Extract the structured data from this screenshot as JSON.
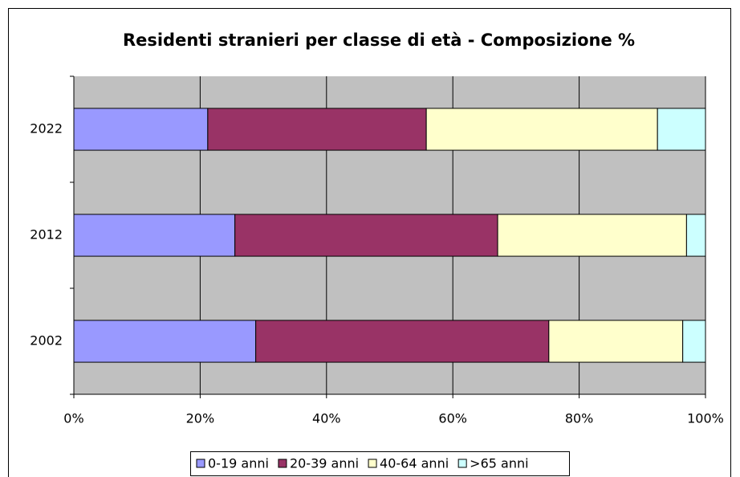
{
  "chart_data": {
    "type": "stacked-barh",
    "title": "Residenti stranieri per classe di età - Composizione %",
    "categories": [
      "2002",
      "2012",
      "2022"
    ],
    "series": [
      {
        "name": "0-19 anni",
        "color": "#9999ff",
        "values": [
          28.8,
          25.5,
          21.2
        ]
      },
      {
        "name": "20-39 anni",
        "color": "#993366",
        "values": [
          46.4,
          41.6,
          34.6
        ]
      },
      {
        "name": "40-64 anni",
        "color": "#ffffcc",
        "values": [
          21.2,
          29.9,
          36.6
        ]
      },
      {
        "name": ">65 anni",
        "color": "#ccffff",
        "values": [
          3.6,
          3.0,
          7.6
        ]
      }
    ],
    "xlim": [
      0,
      100
    ],
    "xticks": [
      {
        "value": 0,
        "label": "0%"
      },
      {
        "value": 20,
        "label": "20%"
      },
      {
        "value": 40,
        "label": "40%"
      },
      {
        "value": 60,
        "label": "60%"
      },
      {
        "value": 80,
        "label": "80%"
      },
      {
        "value": 100,
        "label": "100%"
      }
    ],
    "grid": true,
    "legend": "bottom"
  }
}
